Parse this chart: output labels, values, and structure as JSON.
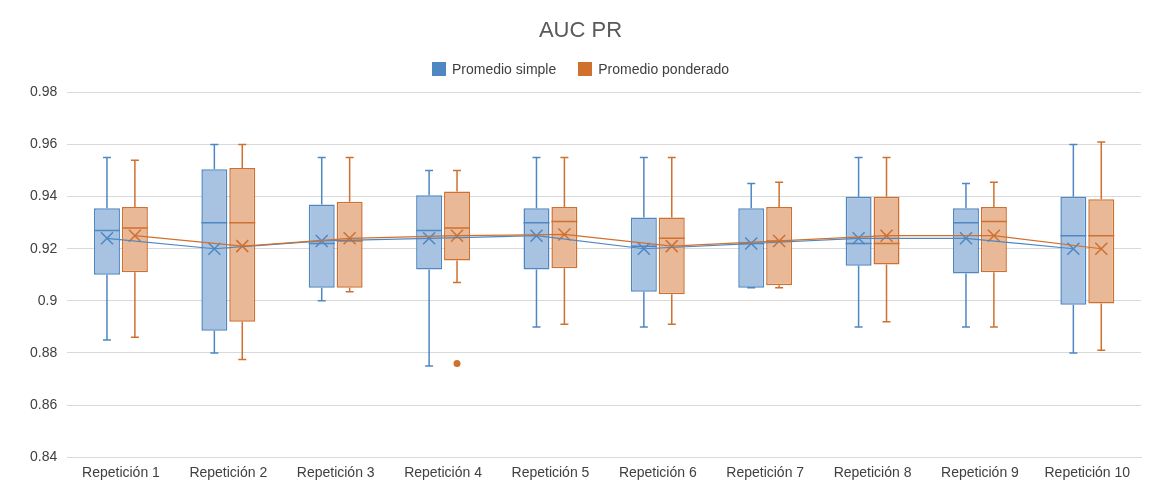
{
  "chart_data": {
    "type": "box",
    "title": "AUC PR",
    "categories": [
      "Repetición 1",
      "Repetición 2",
      "Repetición 3",
      "Repetición 4",
      "Repetición 5",
      "Repetición 6",
      "Repetición 7",
      "Repetición 8",
      "Repetición 9",
      "Repetición 10"
    ],
    "ylim": [
      0.84,
      0.98
    ],
    "yticks": [
      0.84,
      0.86,
      0.88,
      0.9,
      0.92,
      0.94,
      0.96,
      0.98
    ],
    "grid": "y",
    "legend": "top",
    "series": [
      {
        "name": "Promedio simple",
        "color": "#4f87c2",
        "boxes": [
          {
            "low": 0.885,
            "q1": 0.91,
            "median": 0.927,
            "q3": 0.9355,
            "high": 0.955,
            "mean": 0.924
          },
          {
            "low": 0.88,
            "q1": 0.8885,
            "median": 0.93,
            "q3": 0.9505,
            "high": 0.96,
            "mean": 0.92
          },
          {
            "low": 0.9,
            "q1": 0.905,
            "median": 0.922,
            "q3": 0.937,
            "high": 0.955,
            "mean": 0.923
          },
          {
            "low": 0.875,
            "q1": 0.912,
            "median": 0.927,
            "q3": 0.9405,
            "high": 0.95,
            "mean": 0.924
          },
          {
            "low": 0.89,
            "q1": 0.912,
            "median": 0.93,
            "q3": 0.9355,
            "high": 0.955,
            "mean": 0.925
          },
          {
            "low": 0.89,
            "q1": 0.9035,
            "median": 0.921,
            "q3": 0.932,
            "high": 0.955,
            "mean": 0.92
          },
          {
            "low": 0.905,
            "q1": 0.905,
            "median": 0.922,
            "q3": 0.9355,
            "high": 0.945,
            "mean": 0.922
          },
          {
            "low": 0.89,
            "q1": 0.9135,
            "median": 0.922,
            "q3": 0.94,
            "high": 0.955,
            "mean": 0.924
          },
          {
            "low": 0.89,
            "q1": 0.9105,
            "median": 0.93,
            "q3": 0.9355,
            "high": 0.945,
            "mean": 0.924
          },
          {
            "low": 0.88,
            "q1": 0.8985,
            "median": 0.925,
            "q3": 0.94,
            "high": 0.96,
            "mean": 0.92
          }
        ]
      },
      {
        "name": "Promedio ponderado",
        "color": "#d0702e",
        "boxes": [
          {
            "low": 0.886,
            "q1": 0.911,
            "median": 0.928,
            "q3": 0.936,
            "high": 0.954,
            "mean": 0.925
          },
          {
            "low": 0.8775,
            "q1": 0.892,
            "median": 0.93,
            "q3": 0.951,
            "high": 0.96,
            "mean": 0.921
          },
          {
            "low": 0.9035,
            "q1": 0.905,
            "median": 0.923,
            "q3": 0.938,
            "high": 0.955,
            "mean": 0.924
          },
          {
            "low": 0.907,
            "q1": 0.9155,
            "median": 0.928,
            "q3": 0.942,
            "high": 0.95,
            "mean": 0.925,
            "outliers": [
              0.876
            ]
          },
          {
            "low": 0.891,
            "q1": 0.9125,
            "median": 0.9305,
            "q3": 0.936,
            "high": 0.955,
            "mean": 0.9255
          },
          {
            "low": 0.891,
            "q1": 0.9025,
            "median": 0.924,
            "q3": 0.932,
            "high": 0.955,
            "mean": 0.921
          },
          {
            "low": 0.905,
            "q1": 0.906,
            "median": 0.923,
            "q3": 0.936,
            "high": 0.9455,
            "mean": 0.923
          },
          {
            "low": 0.892,
            "q1": 0.914,
            "median": 0.922,
            "q3": 0.94,
            "high": 0.955,
            "mean": 0.925
          },
          {
            "low": 0.89,
            "q1": 0.911,
            "median": 0.9305,
            "q3": 0.936,
            "high": 0.9455,
            "mean": 0.925
          },
          {
            "low": 0.881,
            "q1": 0.899,
            "median": 0.925,
            "q3": 0.939,
            "high": 0.961,
            "mean": 0.92
          }
        ]
      },
      {
        "type": "line",
        "color": "#4f87c2",
        "values": [
          0.924,
          0.92,
          0.923,
          0.924,
          0.925,
          0.92,
          0.922,
          0.924,
          0.924,
          0.92
        ]
      },
      {
        "type": "line",
        "color": "#d0702e",
        "values": [
          0.925,
          0.921,
          0.924,
          0.925,
          0.9255,
          0.921,
          0.923,
          0.925,
          0.925,
          0.92
        ]
      }
    ]
  }
}
